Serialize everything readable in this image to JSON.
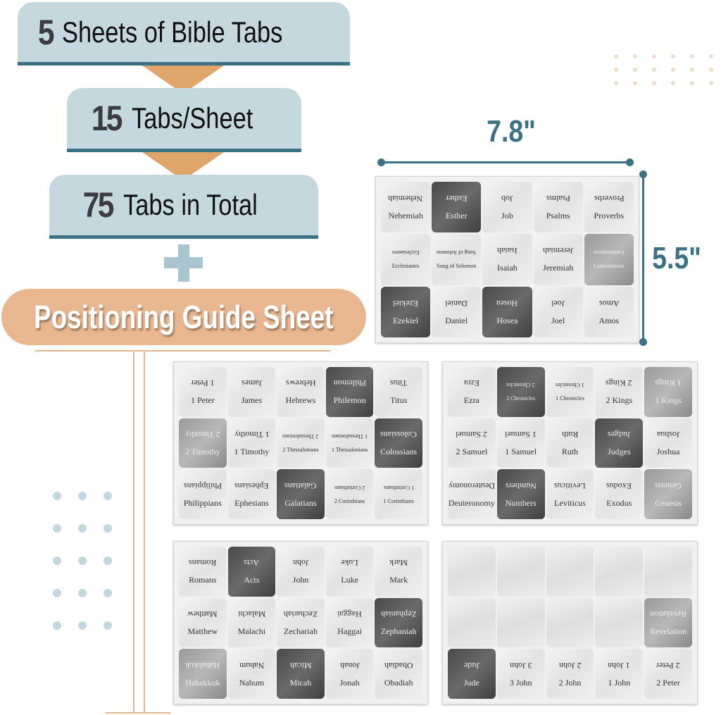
{
  "banners": [
    {
      "number": "5",
      "text": "Sheets of Bible Tabs"
    },
    {
      "number": "15",
      "text": "Tabs/Sheet"
    },
    {
      "number": "75",
      "text": "Tabs in Total"
    }
  ],
  "guide_label": "Positioning Guide Sheet",
  "dimensions": {
    "width": "7.8\"",
    "height": "5.5\""
  },
  "colors": {
    "teal": "#3d7186",
    "light_blue": "#c5d8de",
    "orange": "#e0a56a",
    "peach": "#e9b78f"
  },
  "sheets": [
    {
      "tabs": [
        {
          "label": "Nehemiah",
          "tone": "light"
        },
        {
          "label": "Esther",
          "tone": "dark"
        },
        {
          "label": "Job",
          "tone": "light"
        },
        {
          "label": "Psalms",
          "tone": "light"
        },
        {
          "label": "Proverbs",
          "tone": "light"
        },
        {
          "label": "Ecclesiastes",
          "tone": "light"
        },
        {
          "label": "Song of Solomon",
          "tone": "light"
        },
        {
          "label": "Isaiah",
          "tone": "light"
        },
        {
          "label": "Jeremiah",
          "tone": "light"
        },
        {
          "label": "Lamentations",
          "tone": "mid"
        },
        {
          "label": "Ezekiel",
          "tone": "dark"
        },
        {
          "label": "Daniel",
          "tone": "light"
        },
        {
          "label": "Hosea",
          "tone": "dark"
        },
        {
          "label": "Joel",
          "tone": "light"
        },
        {
          "label": "Amos",
          "tone": "light"
        }
      ]
    },
    {
      "tabs": [
        {
          "label": "1 Peter",
          "tone": "light"
        },
        {
          "label": "James",
          "tone": "light"
        },
        {
          "label": "Hebrews",
          "tone": "light"
        },
        {
          "label": "Philemon",
          "tone": "dark"
        },
        {
          "label": "Titus",
          "tone": "light"
        },
        {
          "label": "2 Timothy",
          "tone": "mid"
        },
        {
          "label": "1 Timothy",
          "tone": "light"
        },
        {
          "label": "2 Thessalonians",
          "tone": "light"
        },
        {
          "label": "1 Thessalonians",
          "tone": "light"
        },
        {
          "label": "Colossians",
          "tone": "dark"
        },
        {
          "label": "Philippians",
          "tone": "light"
        },
        {
          "label": "Ephesians",
          "tone": "light"
        },
        {
          "label": "Galatians",
          "tone": "dark"
        },
        {
          "label": "2 Corinthians",
          "tone": "light"
        },
        {
          "label": "1 Corinthians",
          "tone": "light"
        }
      ]
    },
    {
      "tabs": [
        {
          "label": "Ezra",
          "tone": "light"
        },
        {
          "label": "2 Chronicles",
          "tone": "dark"
        },
        {
          "label": "1 Chronicles",
          "tone": "light"
        },
        {
          "label": "2 Kings",
          "tone": "light"
        },
        {
          "label": "1 Kings",
          "tone": "mid"
        },
        {
          "label": "2 Samuel",
          "tone": "light"
        },
        {
          "label": "1 Samuel",
          "tone": "light"
        },
        {
          "label": "Ruth",
          "tone": "light"
        },
        {
          "label": "Judges",
          "tone": "dark"
        },
        {
          "label": "Joshua",
          "tone": "light"
        },
        {
          "label": "Deuteronomy",
          "tone": "light"
        },
        {
          "label": "Numbers",
          "tone": "dark"
        },
        {
          "label": "Leviticus",
          "tone": "light"
        },
        {
          "label": "Exodus",
          "tone": "light"
        },
        {
          "label": "Genesis",
          "tone": "mid"
        }
      ]
    },
    {
      "tabs": [
        {
          "label": "Romans",
          "tone": "light"
        },
        {
          "label": "Acts",
          "tone": "dark"
        },
        {
          "label": "John",
          "tone": "light"
        },
        {
          "label": "Luke",
          "tone": "light"
        },
        {
          "label": "Mark",
          "tone": "light"
        },
        {
          "label": "Matthew",
          "tone": "light"
        },
        {
          "label": "Malachi",
          "tone": "light"
        },
        {
          "label": "Zechariah",
          "tone": "light"
        },
        {
          "label": "Haggai",
          "tone": "light"
        },
        {
          "label": "Zephaniah",
          "tone": "dark"
        },
        {
          "label": "Habakkuk",
          "tone": "mid"
        },
        {
          "label": "Nahum",
          "tone": "light"
        },
        {
          "label": "Micah",
          "tone": "dark"
        },
        {
          "label": "Jonah",
          "tone": "light"
        },
        {
          "label": "Obadiah",
          "tone": "light"
        }
      ]
    },
    {
      "tabs": [
        {
          "label": "",
          "tone": "blank"
        },
        {
          "label": "",
          "tone": "blank"
        },
        {
          "label": "",
          "tone": "blank"
        },
        {
          "label": "",
          "tone": "blank"
        },
        {
          "label": "",
          "tone": "blank"
        },
        {
          "label": "",
          "tone": "blank"
        },
        {
          "label": "",
          "tone": "blank"
        },
        {
          "label": "",
          "tone": "blank"
        },
        {
          "label": "",
          "tone": "blank"
        },
        {
          "label": "Revelation",
          "tone": "mid"
        },
        {
          "label": "Jude",
          "tone": "dark"
        },
        {
          "label": "3 John",
          "tone": "light"
        },
        {
          "label": "2 John",
          "tone": "light"
        },
        {
          "label": "1 John",
          "tone": "light"
        },
        {
          "label": "2 Peter",
          "tone": "light"
        }
      ]
    }
  ]
}
